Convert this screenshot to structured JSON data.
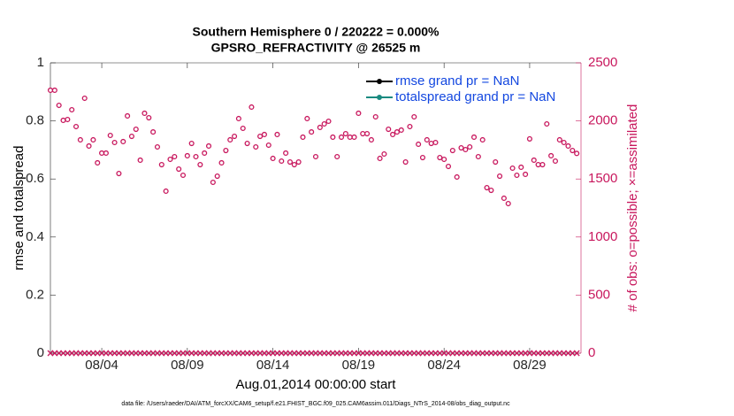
{
  "chart_data": {
    "type": "scatter",
    "title": [
      "Southern Hemisphere 0 / 220222 = 0.000%",
      "GPSRO_REFRACTIVITY @ 26525 m"
    ],
    "ylabel": "rmse and totalspread",
    "y2label": "# of obs: o=possible; ×=assimilated",
    "xlabel": "Aug.01,2014 00:00:00 start",
    "footnote": "data file: /Users/raeder/DAI/ATM_forcXX/CAM6_setup/f.e21.FHIST_BGC.f09_025.CAM6assim.011/Diags_NTrS_2014-08/obs_diag_output.nc",
    "xlim": [
      0,
      31
    ],
    "xticks": [
      {
        "value": 3,
        "label": "08/04"
      },
      {
        "value": 8,
        "label": "08/09"
      },
      {
        "value": 13,
        "label": "08/14"
      },
      {
        "value": 18,
        "label": "08/19"
      },
      {
        "value": 23,
        "label": "08/24"
      },
      {
        "value": 28,
        "label": "08/29"
      }
    ],
    "ylim": [
      0,
      1
    ],
    "yticks": [
      0,
      0.2,
      0.4,
      0.6,
      0.8,
      1
    ],
    "y2lim": [
      0,
      2500
    ],
    "y2ticks": [
      0,
      500,
      1000,
      1500,
      2000,
      2500
    ],
    "y2color": "#c8175d",
    "legend": [
      {
        "name": "rmse grand pr = NaN",
        "color": "#000000"
      },
      {
        "name": "totalspread grand pr = NaN",
        "color": "#1a8a80"
      }
    ],
    "legend_text_color": "#1448e0",
    "x": [
      0,
      0.25,
      0.5,
      0.75,
      1,
      1.25,
      1.5,
      1.75,
      2,
      2.25,
      2.5,
      2.75,
      3,
      3.25,
      3.5,
      3.75,
      4,
      4.25,
      4.5,
      4.75,
      5,
      5.25,
      5.5,
      5.75,
      6,
      6.25,
      6.5,
      6.75,
      7,
      7.25,
      7.5,
      7.75,
      8,
      8.25,
      8.5,
      8.75,
      9,
      9.25,
      9.5,
      9.75,
      10,
      10.25,
      10.5,
      10.75,
      11,
      11.25,
      11.5,
      11.75,
      12,
      12.25,
      12.5,
      12.75,
      13,
      13.25,
      13.5,
      13.75,
      14,
      14.25,
      14.5,
      14.75,
      15,
      15.25,
      15.5,
      15.75,
      16,
      16.25,
      16.5,
      16.75,
      17,
      17.25,
      17.5,
      17.75,
      18,
      18.25,
      18.5,
      18.75,
      19,
      19.25,
      19.5,
      19.75,
      20,
      20.25,
      20.5,
      20.75,
      21,
      21.25,
      21.5,
      21.75,
      22,
      22.25,
      22.5,
      22.75,
      23,
      23.25,
      23.5,
      23.75,
      24,
      24.25,
      24.5,
      24.75,
      25,
      25.25,
      25.5,
      25.75,
      26,
      26.25,
      26.5,
      26.75,
      27,
      27.25,
      27.5,
      27.75,
      28,
      28.25,
      28.5,
      28.75,
      29,
      29.25,
      29.5,
      29.75,
      30,
      30.25,
      30.5,
      30.75
    ],
    "series": [
      {
        "marker": "circle",
        "axis": "y2",
        "color": "#c8175d",
        "values": [
          2264,
          2264,
          2134,
          2005,
          2012,
          2096,
          1951,
          1837,
          2195,
          1784,
          1837,
          1639,
          1723,
          1723,
          1875,
          1814,
          1547,
          1822,
          2043,
          1867,
          1928,
          1662,
          2066,
          2027,
          1905,
          1776,
          1623,
          1395,
          1669,
          1692,
          1585,
          1532,
          1700,
          1806,
          1692,
          1623,
          1723,
          1784,
          1471,
          1524,
          1639,
          1745,
          1837,
          1867,
          2020,
          1936,
          1806,
          2119,
          1776,
          1867,
          1883,
          1791,
          1677,
          1883,
          1654,
          1723,
          1646,
          1623,
          1646,
          1860,
          2020,
          1905,
          1692,
          1944,
          1974,
          1997,
          1860,
          1692,
          1860,
          1890,
          1860,
          1860,
          2066,
          1890,
          1890,
          1837,
          2035,
          1677,
          1715,
          1928,
          1883,
          1905,
          1921,
          1646,
          1951,
          2035,
          1799,
          1684,
          1837,
          1806,
          1814,
          1684,
          1669,
          1608,
          1745,
          1517,
          1768,
          1753,
          1776,
          1860,
          1692,
          1837,
          1425,
          1402,
          1646,
          1524,
          1334,
          1288,
          1593,
          1532,
          1601,
          1540,
          1845,
          1662,
          1623,
          1623,
          1974,
          1700,
          1654,
          1837,
          1814,
          1784,
          1745,
          1720
        ]
      },
      {
        "marker": "x",
        "axis": "y2",
        "color": "#c8175d",
        "values": [
          0,
          0,
          0,
          0,
          0,
          0,
          0,
          0,
          0,
          0,
          0,
          0,
          0,
          0,
          0,
          0,
          0,
          0,
          0,
          0,
          0,
          0,
          0,
          0,
          0,
          0,
          0,
          0,
          0,
          0,
          0,
          0,
          0,
          0,
          0,
          0,
          0,
          0,
          0,
          0,
          0,
          0,
          0,
          0,
          0,
          0,
          0,
          0,
          0,
          0,
          0,
          0,
          0,
          0,
          0,
          0,
          0,
          0,
          0,
          0,
          0,
          0,
          0,
          0,
          0,
          0,
          0,
          0,
          0,
          0,
          0,
          0,
          0,
          0,
          0,
          0,
          0,
          0,
          0,
          0,
          0,
          0,
          0,
          0,
          0,
          0,
          0,
          0,
          0,
          0,
          0,
          0,
          0,
          0,
          0,
          0,
          0,
          0,
          0,
          0,
          0,
          0,
          0,
          0,
          0,
          0,
          0,
          0,
          0,
          0,
          0,
          0,
          0,
          0,
          0,
          0,
          0,
          0,
          0,
          0,
          0,
          0,
          0,
          0
        ]
      }
    ]
  }
}
